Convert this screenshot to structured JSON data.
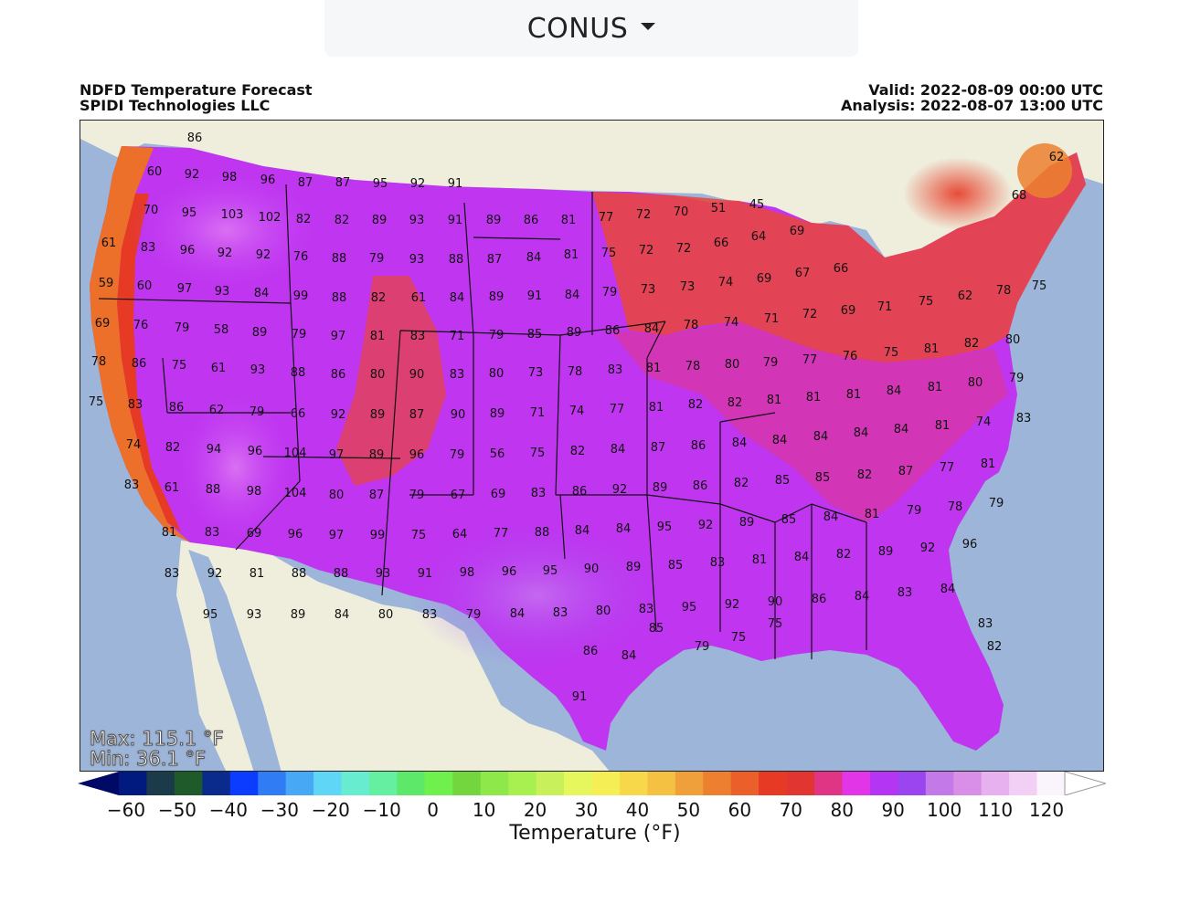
{
  "region_select": {
    "label": "CONUS",
    "icon": "caret-down-icon"
  },
  "header": {
    "title": "NDFD Temperature Forecast",
    "org": "SPIDI Technologies LLC",
    "valid": "Valid: 2022-08-09 00:00 UTC",
    "analysis": "Analysis: 2022-08-07 13:00 UTC"
  },
  "stats": {
    "max": "Max: 115.1 °F",
    "min": "Min: 36.1 °F"
  },
  "colorbar": {
    "title": "Temperature (°F)",
    "ticks": [
      "−60",
      "−50",
      "−40",
      "−30",
      "−20",
      "−10",
      "0",
      "10",
      "20",
      "30",
      "40",
      "50",
      "60",
      "70",
      "80",
      "90",
      "100",
      "110",
      "120"
    ],
    "colors": [
      "#001a80",
      "#1b3a4a",
      "#1f5a2a",
      "#0a2a8c",
      "#0b3cff",
      "#2f7cf5",
      "#47a8f5",
      "#5fd6f5",
      "#68ecd0",
      "#64f0a0",
      "#5ee86a",
      "#6ff04c",
      "#74d63e",
      "#8ee84a",
      "#a8ef50",
      "#c8f05a",
      "#e6f75e",
      "#f5ee55",
      "#f7d84a",
      "#f5c142",
      "#f0a03a",
      "#ec8030",
      "#ea5f2a",
      "#e63a25",
      "#e03530",
      "#e03585",
      "#e335e8",
      "#b535f5",
      "#9a45f0",
      "#c37ae8",
      "#d98ee8",
      "#e7b0ee",
      "#f2d0f5",
      "#faf4fc"
    ],
    "over_color": "#ffffff",
    "under_color": "#000a66"
  },
  "map": {
    "water_color": "#9db5d9",
    "land_color": "#efeedd",
    "city_values": [
      "86",
      "60",
      "92",
      "98",
      "96",
      "87",
      "87",
      "95",
      "92",
      "91",
      "70",
      "95",
      "103",
      "102",
      "82",
      "82",
      "89",
      "93",
      "91",
      "89",
      "86",
      "81",
      "77",
      "72",
      "70",
      "51",
      "45",
      "62",
      "61",
      "83",
      "96",
      "92",
      "92",
      "76",
      "88",
      "79",
      "93",
      "88",
      "87",
      "84",
      "81",
      "75",
      "72",
      "72",
      "66",
      "64",
      "69",
      "68",
      "59",
      "60",
      "97",
      "93",
      "84",
      "99",
      "88",
      "82",
      "61",
      "84",
      "89",
      "91",
      "84",
      "79",
      "73",
      "73",
      "74",
      "69",
      "67",
      "66",
      "69",
      "76",
      "79",
      "58",
      "89",
      "79",
      "97",
      "81",
      "83",
      "71",
      "79",
      "85",
      "89",
      "86",
      "84",
      "78",
      "74",
      "71",
      "72",
      "69",
      "71",
      "75",
      "62",
      "78",
      "75",
      "78",
      "86",
      "75",
      "61",
      "93",
      "88",
      "86",
      "80",
      "90",
      "83",
      "80",
      "73",
      "78",
      "83",
      "81",
      "78",
      "80",
      "79",
      "77",
      "76",
      "75",
      "81",
      "82",
      "80",
      "75",
      "83",
      "86",
      "62",
      "79",
      "66",
      "92",
      "89",
      "87",
      "90",
      "89",
      "71",
      "74",
      "77",
      "81",
      "82",
      "82",
      "81",
      "81",
      "81",
      "84",
      "81",
      "80",
      "79",
      "74",
      "82",
      "94",
      "96",
      "104",
      "97",
      "89",
      "96",
      "79",
      "56",
      "75",
      "82",
      "84",
      "87",
      "86",
      "84",
      "84",
      "84",
      "84",
      "84",
      "81",
      "74",
      "83",
      "83",
      "61",
      "88",
      "98",
      "104",
      "80",
      "87",
      "79",
      "67",
      "69",
      "83",
      "86",
      "92",
      "89",
      "86",
      "82",
      "85",
      "85",
      "82",
      "87",
      "77",
      "81",
      "81",
      "83",
      "69",
      "96",
      "97",
      "99",
      "75",
      "64",
      "77",
      "88",
      "84",
      "84",
      "95",
      "92",
      "89",
      "85",
      "84",
      "81",
      "79",
      "78",
      "79",
      "83",
      "92",
      "81",
      "88",
      "88",
      "93",
      "91",
      "98",
      "96",
      "95",
      "90",
      "89",
      "85",
      "83",
      "81",
      "84",
      "82",
      "89",
      "92",
      "96",
      "95",
      "93",
      "89",
      "84",
      "80",
      "83",
      "79",
      "84",
      "83",
      "80",
      "83",
      "95",
      "92",
      "90",
      "86",
      "84",
      "83",
      "84",
      "83",
      "82",
      "91",
      "86",
      "84",
      "85",
      "79",
      "75",
      "75"
    ]
  }
}
